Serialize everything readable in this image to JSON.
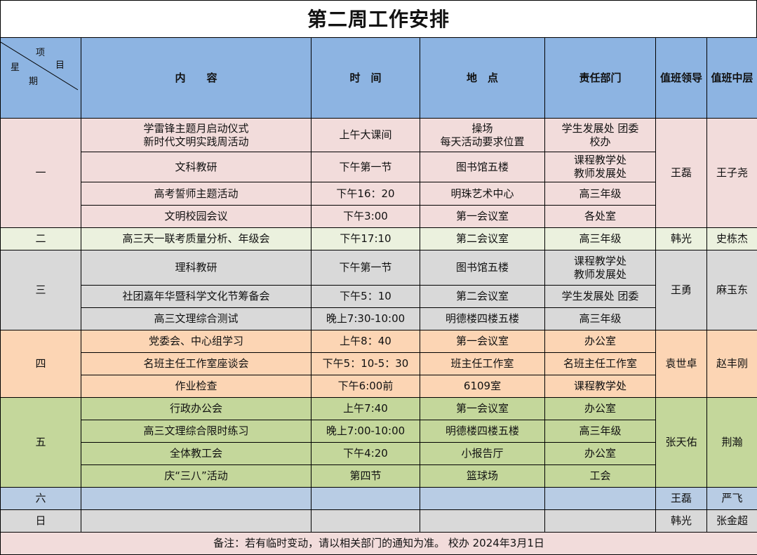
{
  "title": "第二周工作安排",
  "header": {
    "corner": {
      "item_1": "项",
      "item_2": "目",
      "day_1": "星",
      "day_2": "期"
    },
    "content": "内　　容",
    "time": "时　间",
    "place": "地　点",
    "dept": "责任部门",
    "leader": "值班领导",
    "middle": "值班中层"
  },
  "days": [
    {
      "day": "一",
      "color": "#f2dcdb",
      "leader": "王磊",
      "middle": "王子尧",
      "rows": [
        {
          "content": "学雷锋主题月启动仪式\n新时代文明实践周活动",
          "time": "上午大课间",
          "place": "操场\n每天活动要求位置",
          "dept": "学生发展处 团委\n校办",
          "h": 48
        },
        {
          "content": "文科教研",
          "time": "下午第一节",
          "place": "图书馆五楼",
          "dept": "课程教学处\n教师发展处",
          "h": 43
        },
        {
          "content": "高考誓师主题活动",
          "time": "下午16：20",
          "place": "明珠艺术中心",
          "dept": "高三年级",
          "h": 33
        },
        {
          "content": "文明校园会议",
          "time": "下午3:00",
          "place": "第一会议室",
          "dept": "各处室",
          "h": 32
        }
      ]
    },
    {
      "day": "二",
      "color": "#ebf1de",
      "leader": "韩光",
      "middle": "史栋杰",
      "rows": [
        {
          "content": "高三天一联考质量分析、年级会",
          "time": "下午17:10",
          "place": "第二会议室",
          "dept": "高三年级",
          "h": 32
        }
      ]
    },
    {
      "day": "三",
      "color": "#d9d9d9",
      "leader": "王勇",
      "middle": "麻玉东",
      "rows": [
        {
          "content": "理科教研",
          "time": "下午第一节",
          "place": "图书馆五楼",
          "dept": "课程教学处\n教师发展处",
          "h": 50
        },
        {
          "content": "社团嘉年华暨科学文化节筹备会",
          "time": "下午5：10",
          "place": "第二会议室",
          "dept": "学生发展处 团委",
          "h": 32
        },
        {
          "content": "高三文理综合测试",
          "time": "晚上7:30-10:00",
          "place": "明德楼四楼五楼",
          "dept": "高三年级",
          "h": 32
        }
      ]
    },
    {
      "day": "四",
      "color": "#fcd5b4",
      "leader": "袁世卓",
      "middle": "赵丰刚",
      "rows": [
        {
          "content": "党委会、中心组学习",
          "time": "上午8：40",
          "place": "第一会议室",
          "dept": "办公室",
          "h": 32
        },
        {
          "content": "名班主任工作室座谈会",
          "time": "下午5：10-5：30",
          "place": "班主任工作室",
          "dept": "名班主任工作室",
          "h": 32
        },
        {
          "content": "作业检查",
          "time": "下午6:00前",
          "place": "6109室",
          "dept": "课程教学处",
          "h": 32
        }
      ]
    },
    {
      "day": "五",
      "color": "#c4d79b",
      "leader": "张天佑",
      "middle": "荆瀚",
      "rows": [
        {
          "content": "行政办公会",
          "time": "上午7:40",
          "place": "第一会议室",
          "dept": "办公室",
          "h": 32
        },
        {
          "content": "高三文理综合限时练习",
          "time": "晚上7:00-10:00",
          "place": "明德楼四楼五楼",
          "dept": "高三年级",
          "h": 32
        },
        {
          "content": "全体教工会",
          "time": "下午4:20",
          "place": "小报告厅",
          "dept": "办公室",
          "h": 32
        },
        {
          "content": "庆“三八”活动",
          "time": "第四节",
          "place": "篮球场",
          "dept": "工会",
          "h": 32
        }
      ]
    },
    {
      "day": "六",
      "color": "#b8cce4",
      "leader": "王磊",
      "middle": "严飞",
      "rows": [
        {
          "content": "",
          "time": "",
          "place": "",
          "dept": "",
          "h": 32
        }
      ]
    },
    {
      "day": "日",
      "color": "#d9d9d9",
      "leader": "韩光",
      "middle": "张金超",
      "rows": [
        {
          "content": "",
          "time": "",
          "place": "",
          "dept": "",
          "h": 32
        }
      ]
    }
  ],
  "footer": "备注：若有临时变动，请以相关部门的通知为准。  校办  2024年3月1日"
}
